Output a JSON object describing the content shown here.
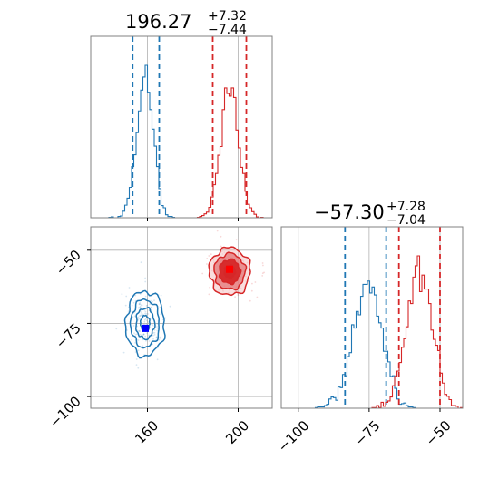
{
  "colors": {
    "series_a": "#1f77b4",
    "series_b": "#d62728",
    "marker_a": "#0000ff",
    "marker_b": "#ff0000",
    "grid": "#b0b0b0",
    "frame": "#808080"
  },
  "titles": {
    "panel_x": {
      "main": "196.27",
      "sup": "+7.32",
      "sub": "−7.44"
    },
    "panel_y": {
      "main": "−57.30",
      "sup": "+7.28",
      "sub": "−7.04"
    }
  },
  "chart_data": [
    {
      "type": "histogram",
      "panel": "marginal-x",
      "xlim": [
        135,
        215
      ],
      "grid": true,
      "series": [
        {
          "name": "",
          "center": 159,
          "sd": 3.7,
          "lo": 153.5,
          "hi": 165.2
        },
        {
          "name": "",
          "center": 196.27,
          "sd": 4.0,
          "lo": 188.8,
          "hi": 203.6
        }
      ],
      "ticks": []
    },
    {
      "type": "scatter",
      "panel": "joint",
      "xlim": [
        135,
        215
      ],
      "ylim": [
        -104,
        -42
      ],
      "grid": true,
      "x_ticks": [
        {
          "v": 160,
          "label": "160"
        },
        {
          "v": 200,
          "label": "200"
        }
      ],
      "y_ticks": [
        {
          "v": -50,
          "label": "−50"
        },
        {
          "v": -75,
          "label": "−75"
        },
        {
          "v": -100,
          "label": "−100"
        }
      ],
      "series": [
        {
          "name": "",
          "center": [
            159,
            -75
          ],
          "sd": [
            3.7,
            4.8
          ],
          "marker": [
            159,
            -76.7
          ]
        },
        {
          "name": "",
          "center": [
            196.27,
            -57.3
          ],
          "sd": [
            4.0,
            3.6
          ],
          "marker": [
            196.2,
            -56.5
          ]
        }
      ]
    },
    {
      "type": "histogram",
      "panel": "marginal-y",
      "xlim": [
        -106,
        -42
      ],
      "grid": true,
      "x_ticks": [
        {
          "v": -100,
          "label": "−100"
        },
        {
          "v": -75,
          "label": "−75"
        },
        {
          "v": -50,
          "label": "−50"
        }
      ],
      "series": [
        {
          "name": "",
          "center": -75.5,
          "sd": 5.0,
          "lo": -83.5,
          "hi": -69.0
        },
        {
          "name": "",
          "center": -57.3,
          "sd": 4.6,
          "lo": -64.5,
          "hi": -50.0
        }
      ]
    }
  ]
}
